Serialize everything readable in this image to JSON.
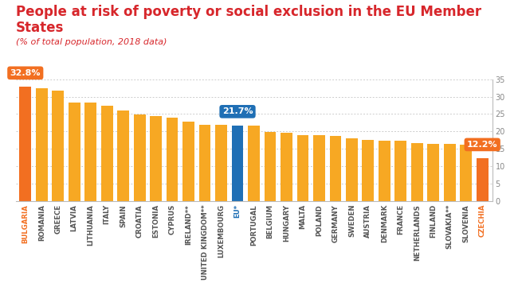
{
  "chart_data": {
    "type": "bar",
    "title": "People at risk of poverty or social exclusion in the EU Member States",
    "subtitle": "(% of total population, 2018 data)",
    "categories": [
      "BULGARIA",
      "ROMANIA",
      "GREECE",
      "LATVIA",
      "LITHUANIA",
      "ITALY",
      "SPAIN",
      "CROATIA",
      "ESTONIA",
      "CYPRUS",
      "IRELAND**",
      "UNITED KINGDOM**",
      "LUXEMBOURG",
      "EU*",
      "PORTUGAL",
      "BELGIUM",
      "HUNGARY",
      "MALTA",
      "POLAND",
      "GERMANY",
      "SWEDEN",
      "AUSTRIA",
      "DENMARK",
      "FRANCE",
      "NETHERLANDS",
      "FINLAND",
      "SLOVAKIA**",
      "SLOVENIA",
      "CZECHIA"
    ],
    "values": [
      32.8,
      32.5,
      31.8,
      28.4,
      28.3,
      27.3,
      26.1,
      24.8,
      24.4,
      23.9,
      22.7,
      22.0,
      21.9,
      21.7,
      21.6,
      19.8,
      19.6,
      19.0,
      18.9,
      18.7,
      18.0,
      17.5,
      17.4,
      17.4,
      16.7,
      16.5,
      16.3,
      16.2,
      12.2
    ],
    "value_labels": [
      "32.8%",
      null,
      null,
      null,
      null,
      null,
      null,
      null,
      null,
      null,
      null,
      null,
      null,
      "21.7%",
      null,
      null,
      null,
      null,
      null,
      null,
      null,
      null,
      null,
      null,
      null,
      null,
      null,
      null,
      "12.2%"
    ],
    "data_labels": true,
    "colors": [
      "#f26f21",
      "#f7a823",
      "#f7a823",
      "#f7a823",
      "#f7a823",
      "#f7a823",
      "#f7a823",
      "#f7a823",
      "#f7a823",
      "#f7a823",
      "#f7a823",
      "#f7a823",
      "#f7a823",
      "#1f6fb5",
      "#f7a823",
      "#f7a823",
      "#f7a823",
      "#f7a823",
      "#f7a823",
      "#f7a823",
      "#f7a823",
      "#f7a823",
      "#f7a823",
      "#f7a823",
      "#f7a823",
      "#f7a823",
      "#f7a823",
      "#f7a823",
      "#f26f21"
    ],
    "ylim": [
      0,
      35
    ],
    "yticks": [
      0,
      5,
      10,
      15,
      20,
      25,
      30,
      35
    ],
    "grid": true
  }
}
